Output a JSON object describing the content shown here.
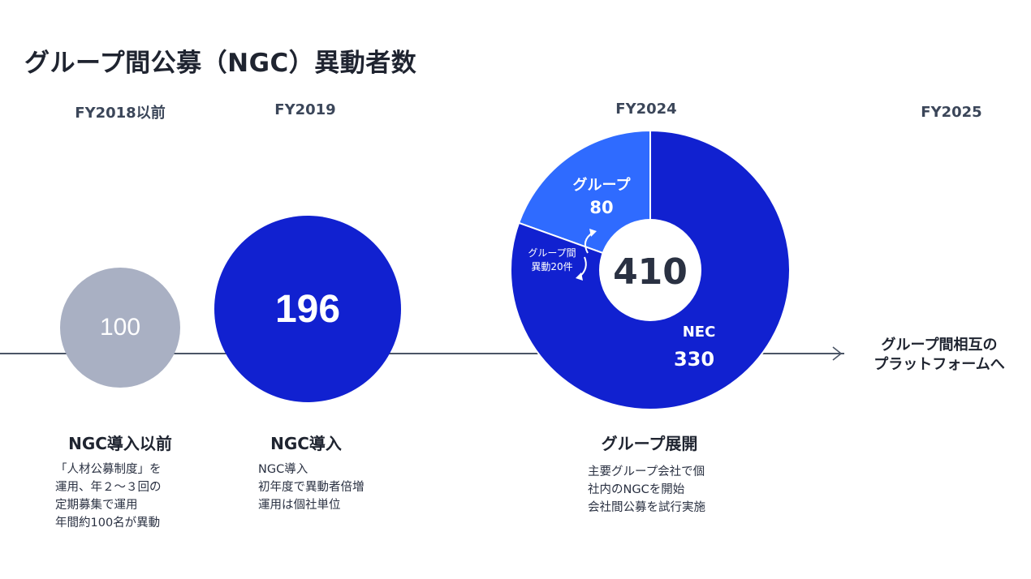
{
  "title": "グループ間公募（NGC）異動者数",
  "timeline": {
    "years": [
      "FY2018以前",
      "FY2019",
      "FY2024",
      "FY2025"
    ],
    "next_label": "グループ間相互の\nプラットフォームへ"
  },
  "stages": [
    {
      "title": "NGC導入以前",
      "desc": "「人材公募制度」を\n運用、年２～３回の\n定期募集で運用\n年間約100名が異動"
    },
    {
      "title": "NGC導入",
      "desc": "NGC導入\n初年度で異動者倍増\n運用は個社単位"
    },
    {
      "title": "グループ展開",
      "desc": "主要グループ会社で個\n社内のNGCを開始\n会社間公募を試行実施"
    }
  ],
  "chart_data": [
    {
      "type": "bubble",
      "categories": [
        "FY2018以前",
        "FY2019"
      ],
      "values": [
        100,
        196
      ],
      "labels": [
        "100",
        "196"
      ]
    },
    {
      "type": "pie",
      "category": "FY2024",
      "total": 410,
      "total_label": "410",
      "slices": [
        {
          "name": "グループ",
          "value": 80,
          "value_label": "80"
        },
        {
          "name": "NEC",
          "value": 330,
          "value_label": "330"
        }
      ],
      "annotation": "グループ間\n異動20件"
    }
  ],
  "colors": {
    "grey_circle": "#a9b0c3",
    "nec_blue": "#1121d0",
    "group_blue": "#2f6bff",
    "text_dark": "#1f2430",
    "axis": "#4b5566"
  }
}
